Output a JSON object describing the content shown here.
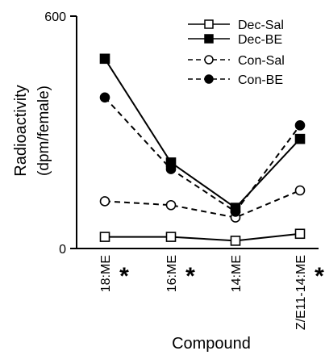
{
  "chart_data": {
    "type": "line",
    "title": "",
    "xlabel": "Compound",
    "ylabel_line1": "Radioactivity",
    "ylabel_line2": "(dpm/female)",
    "ylim": [
      0,
      600
    ],
    "y_ticks": [
      "0",
      "600"
    ],
    "categories": [
      "18:ME",
      "16:ME",
      "14:ME",
      "Z/E11-14:ME"
    ],
    "significance_marker": "*",
    "significant": [
      true,
      true,
      false,
      true
    ],
    "grid": false,
    "legend_position": "top-right",
    "series": [
      {
        "name": "Dec-Sal",
        "values": [
          30,
          30,
          20,
          38
        ],
        "line": "solid",
        "marker": "square-open"
      },
      {
        "name": "Dec-BE",
        "values": [
          490,
          222,
          105,
          283
        ],
        "line": "solid",
        "marker": "square-filled"
      },
      {
        "name": "Con-Sal",
        "values": [
          122,
          112,
          80,
          150
        ],
        "line": "dashed",
        "marker": "circle-open"
      },
      {
        "name": "Con-BE",
        "values": [
          390,
          205,
          95,
          318
        ],
        "line": "dashed",
        "marker": "circle-filled"
      }
    ]
  }
}
